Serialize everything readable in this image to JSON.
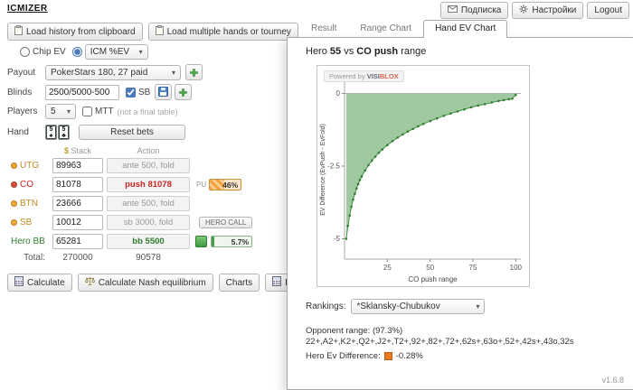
{
  "colors": {
    "accent_green": "#3f8f3f",
    "chart_fill": "#90c090",
    "chart_line": "#3f8f3f",
    "push_red": "#cc2222",
    "hero_green": "#2e7d2e",
    "position_orange": "#c08a1e",
    "bar_orange": "#f2a33c"
  },
  "top_bar": {
    "logo": "ICMIZER",
    "subscribe_label": "Подписка",
    "settings_label": "Настройки",
    "logout_label": "Logout"
  },
  "toolbar": {
    "load_clipboard_label": "Load history from clipboard",
    "load_multiple_label": "Load multiple hands or tourney"
  },
  "mode": {
    "chip_ev_label": "Chip EV",
    "icm_ev_label": "ICM %EV"
  },
  "form": {
    "payout_label": "Payout",
    "payout_value": "PokerStars 180, 27 paid",
    "blinds_label": "Blinds",
    "blinds_value": "2500/5000-500",
    "sb_label": "SB",
    "players_label": "Players",
    "players_value": "5",
    "mtt_label": "MTT",
    "mtt_note": "(not a final table)",
    "hand_label": "Hand",
    "cards": [
      {
        "rank": "5",
        "suit": "♠"
      },
      {
        "rank": "5",
        "suit": "♣"
      }
    ],
    "reset_label": "Reset bets"
  },
  "table": {
    "stack_header_symbol": "$",
    "stack_header": "Stack",
    "action_header": "Action",
    "rows": [
      {
        "pos": "UTG",
        "stack": "89963",
        "action": "ante 500, fold"
      },
      {
        "pos": "CO",
        "stack": "81078",
        "action": "push 81078",
        "pu_label": "PU",
        "percent": "46%"
      },
      {
        "pos": "BTN",
        "stack": "23666",
        "action": "ante 500, fold"
      },
      {
        "pos": "SB",
        "stack": "10012",
        "action": "sb 3000, fold"
      },
      {
        "pos": "Hero BB",
        "stack": "65281",
        "action": "bb 5500",
        "percent": "5.7%"
      }
    ],
    "hero_call_label": "HERO CALL",
    "total_label": "Total:",
    "total_stack": "270000",
    "total_action": "90578"
  },
  "actions": {
    "calculate_label": "Calculate",
    "nash_label": "Calculate Nash equilibrium",
    "charts_label": "Charts",
    "icm_calc_label": "ICM Calculator"
  },
  "panel": {
    "tabs": [
      {
        "label": "Result"
      },
      {
        "label": "Range Chart"
      },
      {
        "label": "Hand EV Chart"
      }
    ],
    "title_hero": "Hero",
    "title_hand": "55",
    "title_vs": "vs",
    "title_range": "CO push",
    "title_suffix": "range",
    "watermark_prefix": "Powered by",
    "watermark_brand_a": "VISI",
    "watermark_brand_b": "BLOX",
    "rankings_label": "Rankings:",
    "rankings_value": "*Sklansky-Chubukov",
    "opponent_label": "Opponent range:",
    "opponent_pct": "(97.3%)",
    "opponent_range": "22+,A2+,K2+,Q2+,J2+,T2+,92+,82+,72+,62s+,63o+,52+,42s+,43o,32s",
    "hero_ev_label": "Hero Ev Difference:",
    "hero_ev_value": "-0.28%",
    "version": "v1.6.8"
  },
  "chart_data": {
    "type": "area",
    "title": "Hero 55 vs CO push range",
    "xlabel": "CO push range",
    "ylabel": "EV Difference (EvPush - EvFold)",
    "xlim": [
      0,
      103
    ],
    "ylim": [
      -5.7,
      0.45
    ],
    "xticks": [
      25,
      50,
      75,
      100
    ],
    "yticks": [
      0,
      -2.5,
      -5
    ],
    "grid": false,
    "legend": false,
    "fill_color": "#90c090",
    "line_color": "#3f8f3f",
    "point_color": "#2f7d2f",
    "x": [
      1,
      2,
      3,
      4,
      5,
      6,
      7,
      8,
      9,
      10,
      12,
      14,
      16,
      18,
      20,
      22,
      25,
      28,
      31,
      34,
      37,
      40,
      43,
      46,
      50,
      54,
      58,
      62,
      66,
      70,
      74,
      78,
      82,
      86,
      90,
      93,
      96,
      98,
      100
    ],
    "y": [
      -5.0,
      -4.55,
      -4.2,
      -3.9,
      -3.65,
      -3.45,
      -3.27,
      -3.12,
      -2.98,
      -2.86,
      -2.65,
      -2.47,
      -2.31,
      -2.17,
      -2.04,
      -1.93,
      -1.78,
      -1.64,
      -1.52,
      -1.41,
      -1.31,
      -1.22,
      -1.13,
      -1.05,
      -0.95,
      -0.86,
      -0.77,
      -0.69,
      -0.62,
      -0.55,
      -0.48,
      -0.42,
      -0.37,
      -0.31,
      -0.26,
      -0.23,
      -0.2,
      -0.18,
      -0.05
    ]
  }
}
